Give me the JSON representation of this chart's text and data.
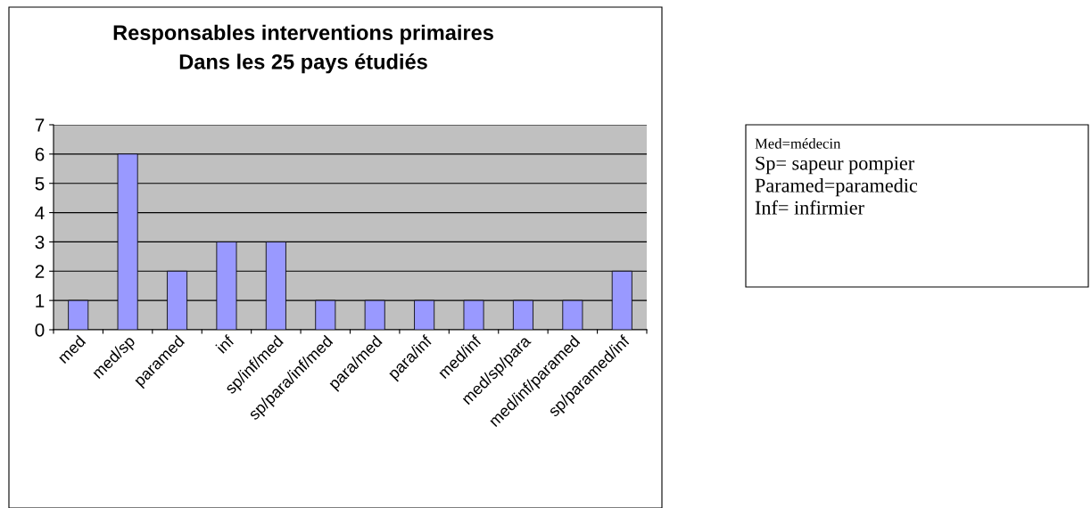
{
  "chart_data": {
    "type": "bar",
    "title": "Responsables interventions primaires\nDans les 25 pays étudiés",
    "categories": [
      "med",
      "med/sp",
      "paramed",
      "inf",
      "sp/inf/med",
      "sp/para/inf/med",
      "para/med",
      "para/inf",
      "med/inf",
      "med/sp/para",
      "med/inf/paramed",
      "sp/paramed/inf"
    ],
    "values": [
      1,
      6,
      2,
      3,
      3,
      1,
      1,
      1,
      1,
      1,
      1,
      2
    ],
    "color": "#9999ff",
    "ylim": [
      0,
      7
    ],
    "yticks": [
      0,
      1,
      2,
      3,
      4,
      5,
      6,
      7
    ],
    "grid": "y",
    "legend": false,
    "annotations": [
      "Med=médecin",
      "Sp= sapeur pompier",
      "Paramed=paramedic",
      "Inf= infirmier"
    ]
  }
}
